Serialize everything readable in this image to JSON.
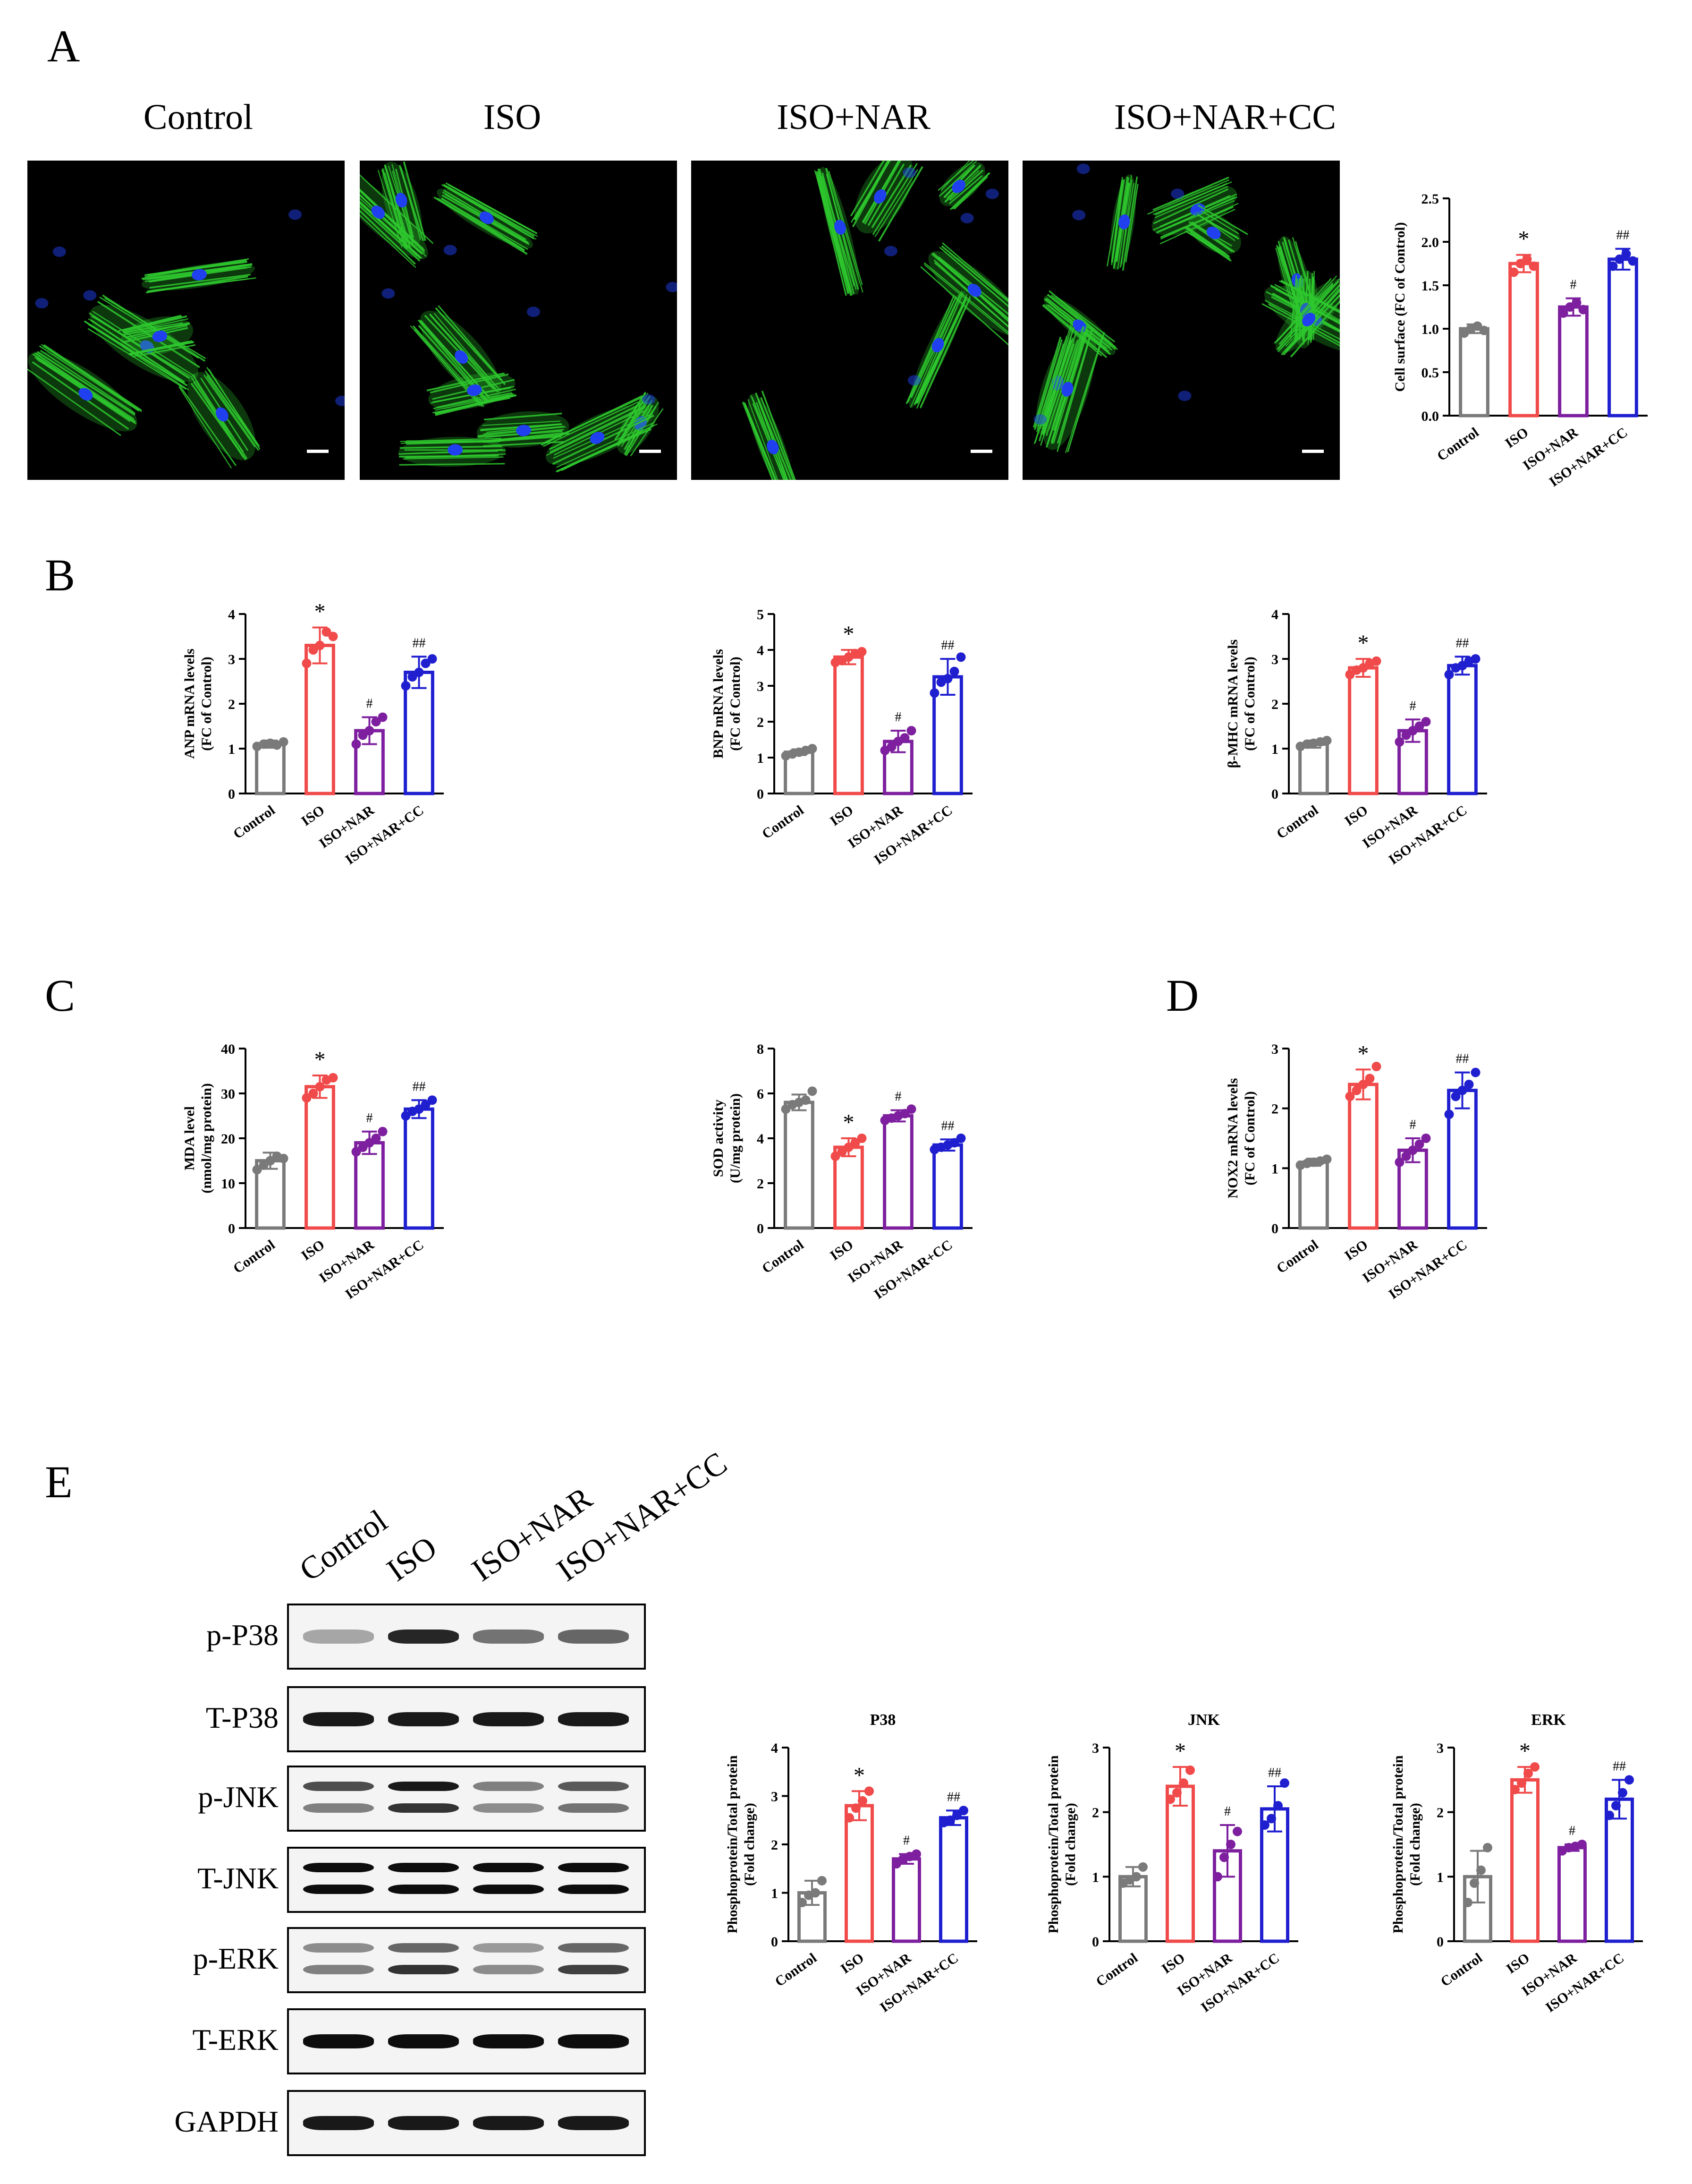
{
  "panels": {
    "A": "A",
    "B": "B",
    "C": "C",
    "D": "D",
    "E": "E"
  },
  "groups": [
    "Control",
    "ISO",
    "ISO+NAR",
    "ISO+NAR+CC"
  ],
  "colors": {
    "Control": "#7a7a7a",
    "ISO": "#f04a4a",
    "ISO+NAR": "#7d1f9e",
    "ISO+NAR+CC": "#1f1fd0"
  },
  "microscopy": {
    "titles": [
      "Control",
      "ISO",
      "ISO+NAR",
      "ISO+NAR+CC"
    ],
    "stain_colors": {
      "actin": "#2ec82e",
      "nuclei": "#2040f0"
    }
  },
  "western_blot": {
    "lanes": [
      "Control",
      "ISO",
      "ISO+NAR",
      "ISO+NAR+CC"
    ],
    "rows": [
      "p-P38",
      "T-P38",
      "p-JNK",
      "T-JNK",
      "p-ERK",
      "T-ERK",
      "GAPDH"
    ]
  },
  "chart_data": [
    {
      "id": "cell-surface",
      "type": "bar",
      "categories": [
        "Control",
        "ISO",
        "ISO+NAR",
        "ISO+NAR+CC"
      ],
      "values": [
        1.0,
        1.75,
        1.25,
        1.8
      ],
      "errors": [
        0.05,
        0.1,
        0.1,
        0.12
      ],
      "points": [
        [
          0.95,
          1.0,
          1.03,
          0.98
        ],
        [
          1.65,
          1.75,
          1.8,
          1.72
        ],
        [
          1.18,
          1.25,
          1.3,
          1.22
        ],
        [
          1.72,
          1.8,
          1.86,
          1.78
        ]
      ],
      "ylabel": "Cell surface (FC of Control)",
      "ylim": [
        0,
        2.5
      ],
      "yticks": [
        "0.0",
        "0.5",
        "1.0",
        "1.5",
        "2.0",
        "2.5"
      ],
      "marks": [
        "",
        "*",
        "#",
        "##"
      ]
    },
    {
      "id": "anp",
      "type": "bar",
      "categories": [
        "Control",
        "ISO",
        "ISO+NAR",
        "ISO+NAR+CC"
      ],
      "values": [
        1.1,
        3.3,
        1.4,
        2.7
      ],
      "errors": [
        0.08,
        0.4,
        0.3,
        0.35
      ],
      "points": [
        [
          1.05,
          1.1,
          1.12,
          1.08,
          1.15
        ],
        [
          2.9,
          3.2,
          3.3,
          3.6,
          3.5
        ],
        [
          1.1,
          1.3,
          1.4,
          1.6,
          1.7
        ],
        [
          2.4,
          2.6,
          2.7,
          2.9,
          3.0
        ]
      ],
      "ylabel": "ANP mRNA levels",
      "ylabel2": "(FC of Control)",
      "ylim": [
        0,
        4
      ],
      "yticks": [
        "0",
        "1",
        "2",
        "3",
        "4"
      ],
      "marks": [
        "",
        "*",
        "#",
        "##"
      ]
    },
    {
      "id": "bnp",
      "type": "bar",
      "categories": [
        "Control",
        "ISO",
        "ISO+NAR",
        "ISO+NAR+CC"
      ],
      "values": [
        1.15,
        3.8,
        1.45,
        3.25
      ],
      "errors": [
        0.08,
        0.2,
        0.3,
        0.5
      ],
      "points": [
        [
          1.05,
          1.1,
          1.15,
          1.2,
          1.25
        ],
        [
          3.65,
          3.7,
          3.8,
          3.9,
          3.95
        ],
        [
          1.2,
          1.3,
          1.45,
          1.55,
          1.75
        ],
        [
          2.8,
          3.1,
          3.2,
          3.4,
          3.8
        ]
      ],
      "ylabel": "BNP mRNA levels",
      "ylabel2": "(FC of Control)",
      "ylim": [
        0,
        5
      ],
      "yticks": [
        "0",
        "1",
        "2",
        "3",
        "4",
        "5"
      ],
      "marks": [
        "",
        "*",
        "#",
        "##"
      ]
    },
    {
      "id": "bmhc",
      "type": "bar",
      "categories": [
        "Control",
        "ISO",
        "ISO+NAR",
        "ISO+NAR+CC"
      ],
      "values": [
        1.1,
        2.8,
        1.4,
        2.85
      ],
      "errors": [
        0.08,
        0.2,
        0.25,
        0.2
      ],
      "points": [
        [
          1.05,
          1.1,
          1.12,
          1.15,
          1.18
        ],
        [
          2.65,
          2.75,
          2.8,
          2.9,
          2.95
        ],
        [
          1.15,
          1.3,
          1.4,
          1.5,
          1.6
        ],
        [
          2.65,
          2.8,
          2.85,
          2.95,
          3.0
        ]
      ],
      "ylabel": "β-MHC mRNA levels",
      "ylabel2": "(FC of Control)",
      "ylim": [
        0,
        4
      ],
      "yticks": [
        "0",
        "1",
        "2",
        "3",
        "4"
      ],
      "marks": [
        "",
        "*",
        "#",
        "##"
      ]
    },
    {
      "id": "mda",
      "type": "bar",
      "categories": [
        "Control",
        "ISO",
        "ISO+NAR",
        "ISO+NAR+CC"
      ],
      "values": [
        15,
        31.5,
        19,
        26.5
      ],
      "errors": [
        1.8,
        2.5,
        2.5,
        2.0
      ],
      "points": [
        [
          13,
          14,
          15,
          16,
          15.5
        ],
        [
          29,
          30,
          31.5,
          33,
          33.5
        ],
        [
          17,
          18,
          19,
          20,
          21.5
        ],
        [
          25,
          26,
          26.5,
          27.5,
          28.5
        ]
      ],
      "ylabel": "MDA level",
      "ylabel2": "(nmol/mg protein)",
      "ylim": [
        0,
        40
      ],
      "yticks": [
        "0",
        "10",
        "20",
        "30",
        "40"
      ],
      "marks": [
        "",
        "*",
        "#",
        "##"
      ]
    },
    {
      "id": "sod",
      "type": "bar",
      "categories": [
        "Control",
        "ISO",
        "ISO+NAR",
        "ISO+NAR+CC"
      ],
      "values": [
        5.6,
        3.6,
        5.0,
        3.7
      ],
      "errors": [
        0.35,
        0.4,
        0.25,
        0.25
      ],
      "points": [
        [
          5.3,
          5.5,
          5.6,
          5.7,
          6.1
        ],
        [
          3.2,
          3.4,
          3.6,
          3.8,
          4.0
        ],
        [
          4.8,
          4.9,
          5.0,
          5.1,
          5.3
        ],
        [
          3.5,
          3.6,
          3.7,
          3.8,
          4.0
        ]
      ],
      "ylabel": "SOD activity",
      "ylabel2": "(U/mg protein)",
      "ylim": [
        0,
        8
      ],
      "yticks": [
        "0",
        "2",
        "4",
        "6",
        "8"
      ],
      "marks": [
        "",
        "*",
        "#",
        "##"
      ]
    },
    {
      "id": "nox2",
      "type": "bar",
      "categories": [
        "Control",
        "ISO",
        "ISO+NAR",
        "ISO+NAR+CC"
      ],
      "values": [
        1.1,
        2.4,
        1.3,
        2.3
      ],
      "errors": [
        0.06,
        0.25,
        0.2,
        0.3
      ],
      "points": [
        [
          1.05,
          1.08,
          1.1,
          1.12,
          1.15
        ],
        [
          2.2,
          2.3,
          2.4,
          2.5,
          2.7
        ],
        [
          1.1,
          1.2,
          1.3,
          1.4,
          1.5
        ],
        [
          1.9,
          2.2,
          2.3,
          2.4,
          2.6
        ]
      ],
      "ylabel": "NOX2 mRNA levels",
      "ylabel2": "(FC of Control)",
      "ylim": [
        0,
        3
      ],
      "yticks": [
        "0",
        "1",
        "2",
        "3"
      ],
      "marks": [
        "",
        "*",
        "#",
        "##"
      ]
    },
    {
      "id": "p38",
      "type": "bar",
      "title": "P38",
      "categories": [
        "Control",
        "ISO",
        "ISO+NAR",
        "ISO+NAR+CC"
      ],
      "values": [
        1.0,
        2.8,
        1.7,
        2.55
      ],
      "errors": [
        0.25,
        0.3,
        0.1,
        0.15
      ],
      "points": [
        [
          0.8,
          0.95,
          1.0,
          1.25
        ],
        [
          2.55,
          2.75,
          2.9,
          3.1
        ],
        [
          1.6,
          1.7,
          1.75,
          1.8
        ],
        [
          2.45,
          2.5,
          2.6,
          2.7
        ]
      ],
      "ylabel": "Phosphoprotein/Total protein",
      "ylabel2": "(Fold change)",
      "ylim": [
        0,
        4
      ],
      "yticks": [
        "0",
        "1",
        "2",
        "3",
        "4"
      ],
      "marks": [
        "",
        "*",
        "#",
        "##"
      ]
    },
    {
      "id": "jnk",
      "type": "bar",
      "title": "JNK",
      "categories": [
        "Control",
        "ISO",
        "ISO+NAR",
        "ISO+NAR+CC"
      ],
      "values": [
        1.0,
        2.4,
        1.4,
        2.05
      ],
      "errors": [
        0.15,
        0.3,
        0.4,
        0.35
      ],
      "points": [
        [
          0.9,
          0.95,
          1.0,
          1.15
        ],
        [
          2.2,
          2.3,
          2.45,
          2.65
        ],
        [
          1.0,
          1.3,
          1.5,
          1.7
        ],
        [
          1.8,
          1.9,
          2.1,
          2.45
        ]
      ],
      "ylabel": "Phosphoprotein/Total protein",
      "ylabel2": "(Fold change)",
      "ylim": [
        0,
        3
      ],
      "yticks": [
        "0",
        "1",
        "2",
        "3"
      ],
      "marks": [
        "",
        "*",
        "#",
        "##"
      ]
    },
    {
      "id": "erk",
      "type": "bar",
      "title": "ERK",
      "categories": [
        "Control",
        "ISO",
        "ISO+NAR",
        "ISO+NAR+CC"
      ],
      "values": [
        1.0,
        2.5,
        1.45,
        2.2
      ],
      "errors": [
        0.4,
        0.2,
        0.05,
        0.3
      ],
      "points": [
        [
          0.6,
          0.9,
          1.1,
          1.45
        ],
        [
          2.35,
          2.45,
          2.6,
          2.7
        ],
        [
          1.4,
          1.45,
          1.47,
          1.5
        ],
        [
          1.95,
          2.1,
          2.3,
          2.5
        ]
      ],
      "ylabel": "Phosphoprotein/Total protein",
      "ylabel2": "(Fold change)",
      "ylim": [
        0,
        3
      ],
      "yticks": [
        "0",
        "1",
        "2",
        "3"
      ],
      "marks": [
        "",
        "*",
        "#",
        "##"
      ]
    }
  ]
}
